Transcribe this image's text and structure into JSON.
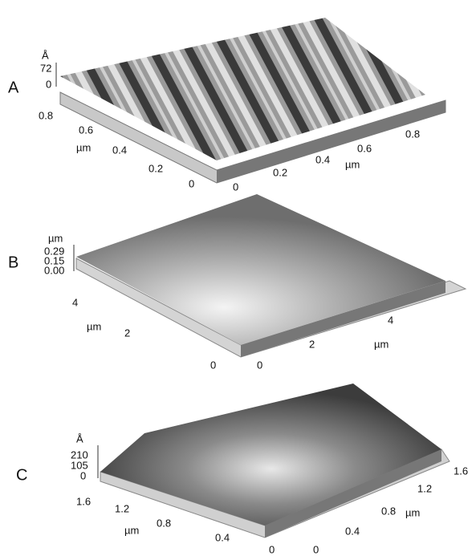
{
  "panels": [
    {
      "label": "A",
      "z_unit": "Å",
      "z_ticks": [
        "72",
        "0"
      ],
      "y_ticks": [
        "0.8",
        "0.6",
        "0.4",
        "0.2",
        "0"
      ],
      "y_unit": "µm",
      "x_ticks": [
        "0",
        "0.2",
        "0.4",
        "0.6",
        "0.8"
      ],
      "x_unit": "µm"
    },
    {
      "label": "B",
      "z_unit": "µm",
      "z_ticks": [
        "0.29",
        "0.15",
        "0.00"
      ],
      "y_ticks": [
        "4",
        "2",
        "0"
      ],
      "y_unit": "µm",
      "x_ticks": [
        "0",
        "2",
        "4"
      ],
      "x_unit": "µm"
    },
    {
      "label": "C",
      "z_unit": "Å",
      "z_ticks": [
        "210",
        "105",
        "0"
      ],
      "y_ticks": [
        "1.6",
        "1.2",
        "0.8",
        "0.4",
        "0"
      ],
      "y_unit": "µm",
      "x_ticks": [
        "0",
        "0.4",
        "0.8",
        "1.2",
        "1.6"
      ],
      "x_unit": "µm"
    }
  ]
}
